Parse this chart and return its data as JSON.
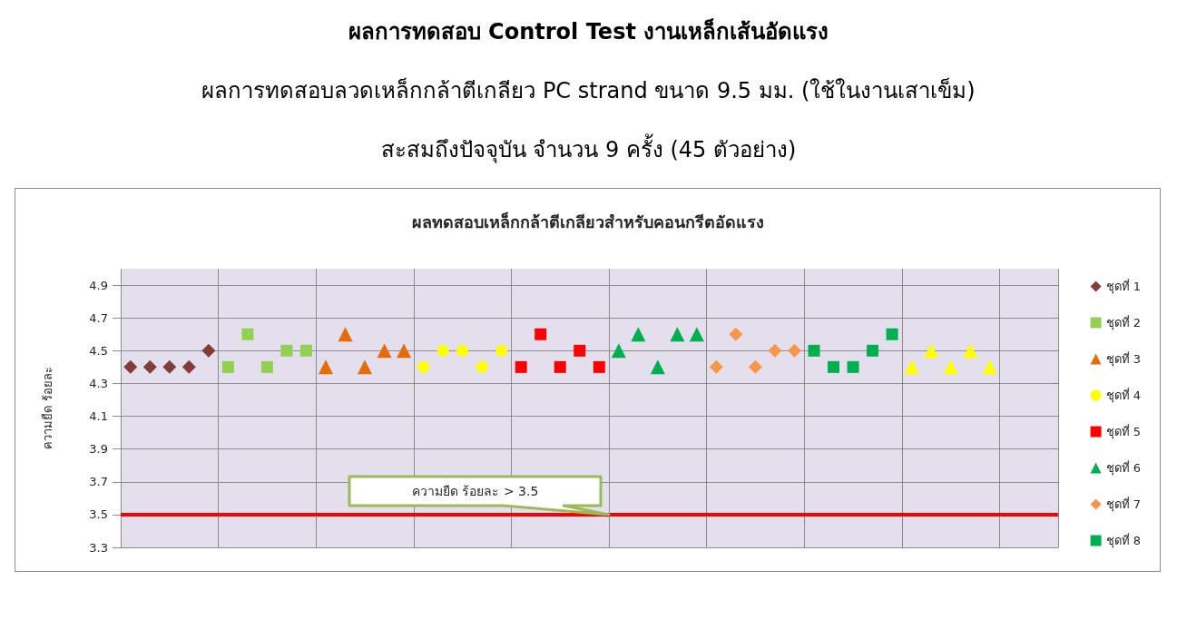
{
  "chart_data": {
    "type": "scatter",
    "title": "ผลการทดสอบ Control Test งานเหล็กเส้นอัดแรง",
    "subtitle": "ผลการทดสอบลวดเหล็กกล้าตีเกลียว PC strand ขนาด 9.5 มม. (ใช้ในงานเสาเข็ม)\nสะสมถึงปัจจุบัน จำนวน 9 ครั้ง (45 ตัวอย่าง)",
    "annotations": [
      "ผลทดสอบเหล็กกล้าตีเกลียวสำหรับคอนกรีตอัดแรง"
    ],
    "ylabel": "ความยืด ร้อยละ",
    "categories": [
      null,
      null,
      null,
      null,
      null,
      null,
      null,
      null,
      null,
      null,
      null,
      null,
      null,
      null,
      null,
      null,
      null,
      null,
      null,
      null,
      null,
      null,
      null,
      null,
      null,
      null,
      null,
      null,
      null,
      null,
      null,
      null,
      null,
      null,
      null,
      null,
      null,
      null,
      null,
      null,
      null,
      null,
      null,
      null,
      null,
      null,
      null,
      null
    ],
    "series": [
      {
        "name": "ชุดที่ 1",
        "color": "#843c39",
        "marker": "diamond",
        "values": [
          4.4,
          4.4,
          4.4,
          4.4,
          4.5,
          null,
          null,
          null,
          null,
          null,
          null,
          null,
          null,
          null,
          null,
          null,
          null,
          null,
          null,
          null,
          null,
          null,
          null,
          null,
          null,
          null,
          null,
          null,
          null,
          null,
          null,
          null,
          null,
          null,
          null,
          null,
          null,
          null,
          null,
          null,
          null,
          null,
          null,
          null,
          null,
          null,
          null,
          null
        ]
      },
      {
        "name": "ชุดที่ 2",
        "color": "#92d050",
        "marker": "square",
        "values": [
          null,
          null,
          null,
          null,
          null,
          4.4,
          4.6,
          4.4,
          4.5,
          4.5,
          null,
          null,
          null,
          null,
          null,
          null,
          null,
          null,
          null,
          null,
          null,
          null,
          null,
          null,
          null,
          null,
          null,
          null,
          null,
          null,
          null,
          null,
          null,
          null,
          null,
          null,
          null,
          null,
          null,
          null,
          null,
          null,
          null,
          null,
          null,
          null,
          null,
          null
        ]
      },
      {
        "name": "ชุดที่ 3",
        "color": "#e46c0a",
        "marker": "triangle",
        "values": [
          null,
          null,
          null,
          null,
          null,
          null,
          null,
          null,
          null,
          null,
          4.4,
          4.6,
          4.4,
          4.5,
          4.5,
          null,
          null,
          null,
          null,
          null,
          null,
          null,
          null,
          null,
          null,
          null,
          null,
          null,
          null,
          null,
          null,
          null,
          null,
          null,
          null,
          null,
          null,
          null,
          null,
          null,
          null,
          null,
          null,
          null,
          null,
          null,
          null,
          null
        ]
      },
      {
        "name": "ชุดที่ 4",
        "color": "#ffff00",
        "marker": "circle",
        "values": [
          null,
          null,
          null,
          null,
          null,
          null,
          null,
          null,
          null,
          null,
          null,
          null,
          null,
          null,
          null,
          4.4,
          4.5,
          4.5,
          4.4,
          4.5,
          null,
          null,
          null,
          null,
          null,
          null,
          null,
          null,
          null,
          null,
          null,
          null,
          null,
          null,
          null,
          null,
          null,
          null,
          null,
          null,
          null,
          null,
          null,
          null,
          null,
          null,
          null,
          null
        ]
      },
      {
        "name": "ชุดที่ 5",
        "color": "#ff0000",
        "marker": "square",
        "values": [
          null,
          null,
          null,
          null,
          null,
          null,
          null,
          null,
          null,
          null,
          null,
          null,
          null,
          null,
          null,
          null,
          null,
          null,
          null,
          null,
          4.4,
          4.6,
          4.4,
          4.5,
          4.4,
          null,
          null,
          null,
          null,
          null,
          null,
          null,
          null,
          null,
          null,
          null,
          null,
          null,
          null,
          null,
          null,
          null,
          null,
          null,
          null,
          null,
          null,
          null
        ]
      },
      {
        "name": "ชุดที่ 6",
        "color": "#00b050",
        "marker": "triangle",
        "values": [
          null,
          null,
          null,
          null,
          null,
          null,
          null,
          null,
          null,
          null,
          null,
          null,
          null,
          null,
          null,
          null,
          null,
          null,
          null,
          null,
          null,
          null,
          null,
          null,
          null,
          4.5,
          4.6,
          4.4,
          4.6,
          4.6,
          null,
          null,
          null,
          null,
          null,
          null,
          null,
          null,
          null,
          null,
          null,
          null,
          null,
          null,
          null,
          null,
          null,
          null
        ]
      },
      {
        "name": "ชุดที่ 7",
        "color": "#f79646",
        "marker": "diamond",
        "values": [
          null,
          null,
          null,
          null,
          null,
          null,
          null,
          null,
          null,
          null,
          null,
          null,
          null,
          null,
          null,
          null,
          null,
          null,
          null,
          null,
          null,
          null,
          null,
          null,
          null,
          null,
          null,
          null,
          null,
          null,
          4.4,
          4.6,
          4.4,
          4.5,
          4.5,
          null,
          null,
          null,
          null,
          null,
          null,
          null,
          null,
          null,
          null,
          null,
          null,
          null
        ]
      },
      {
        "name": "ชุดที่ 8",
        "color": "#00b050",
        "marker": "square",
        "values": [
          null,
          null,
          null,
          null,
          null,
          null,
          null,
          null,
          null,
          null,
          null,
          null,
          null,
          null,
          null,
          null,
          null,
          null,
          null,
          null,
          null,
          null,
          null,
          null,
          null,
          null,
          null,
          null,
          null,
          null,
          null,
          null,
          null,
          null,
          null,
          4.5,
          4.4,
          4.4,
          4.5,
          4.6,
          null,
          null,
          null,
          null,
          null,
          null,
          null,
          null
        ]
      },
      {
        "color": "#ffff00",
        "marker": "triangle",
        "values": [
          null,
          null,
          null,
          null,
          null,
          null,
          null,
          null,
          null,
          null,
          null,
          null,
          null,
          null,
          null,
          null,
          null,
          null,
          null,
          null,
          null,
          null,
          null,
          null,
          null,
          null,
          null,
          null,
          null,
          null,
          null,
          null,
          null,
          null,
          null,
          null,
          null,
          null,
          null,
          null,
          4.4,
          4.5,
          4.4,
          4.5,
          4.4,
          null,
          null,
          null
        ]
      }
    ],
    "ylim": [
      3.3,
      5.0
    ],
    "yticks": [
      3.3,
      3.5,
      3.7,
      3.9,
      4.1,
      4.3,
      4.5,
      4.7,
      4.9
    ],
    "ref_lines": [
      {
        "axis": "y",
        "value": 3.5,
        "label": "ความยืด ร้อยละ > 3.5",
        "color": "#ff0000"
      }
    ],
    "grid": true,
    "legend": "right",
    "tick_labels": "y"
  }
}
